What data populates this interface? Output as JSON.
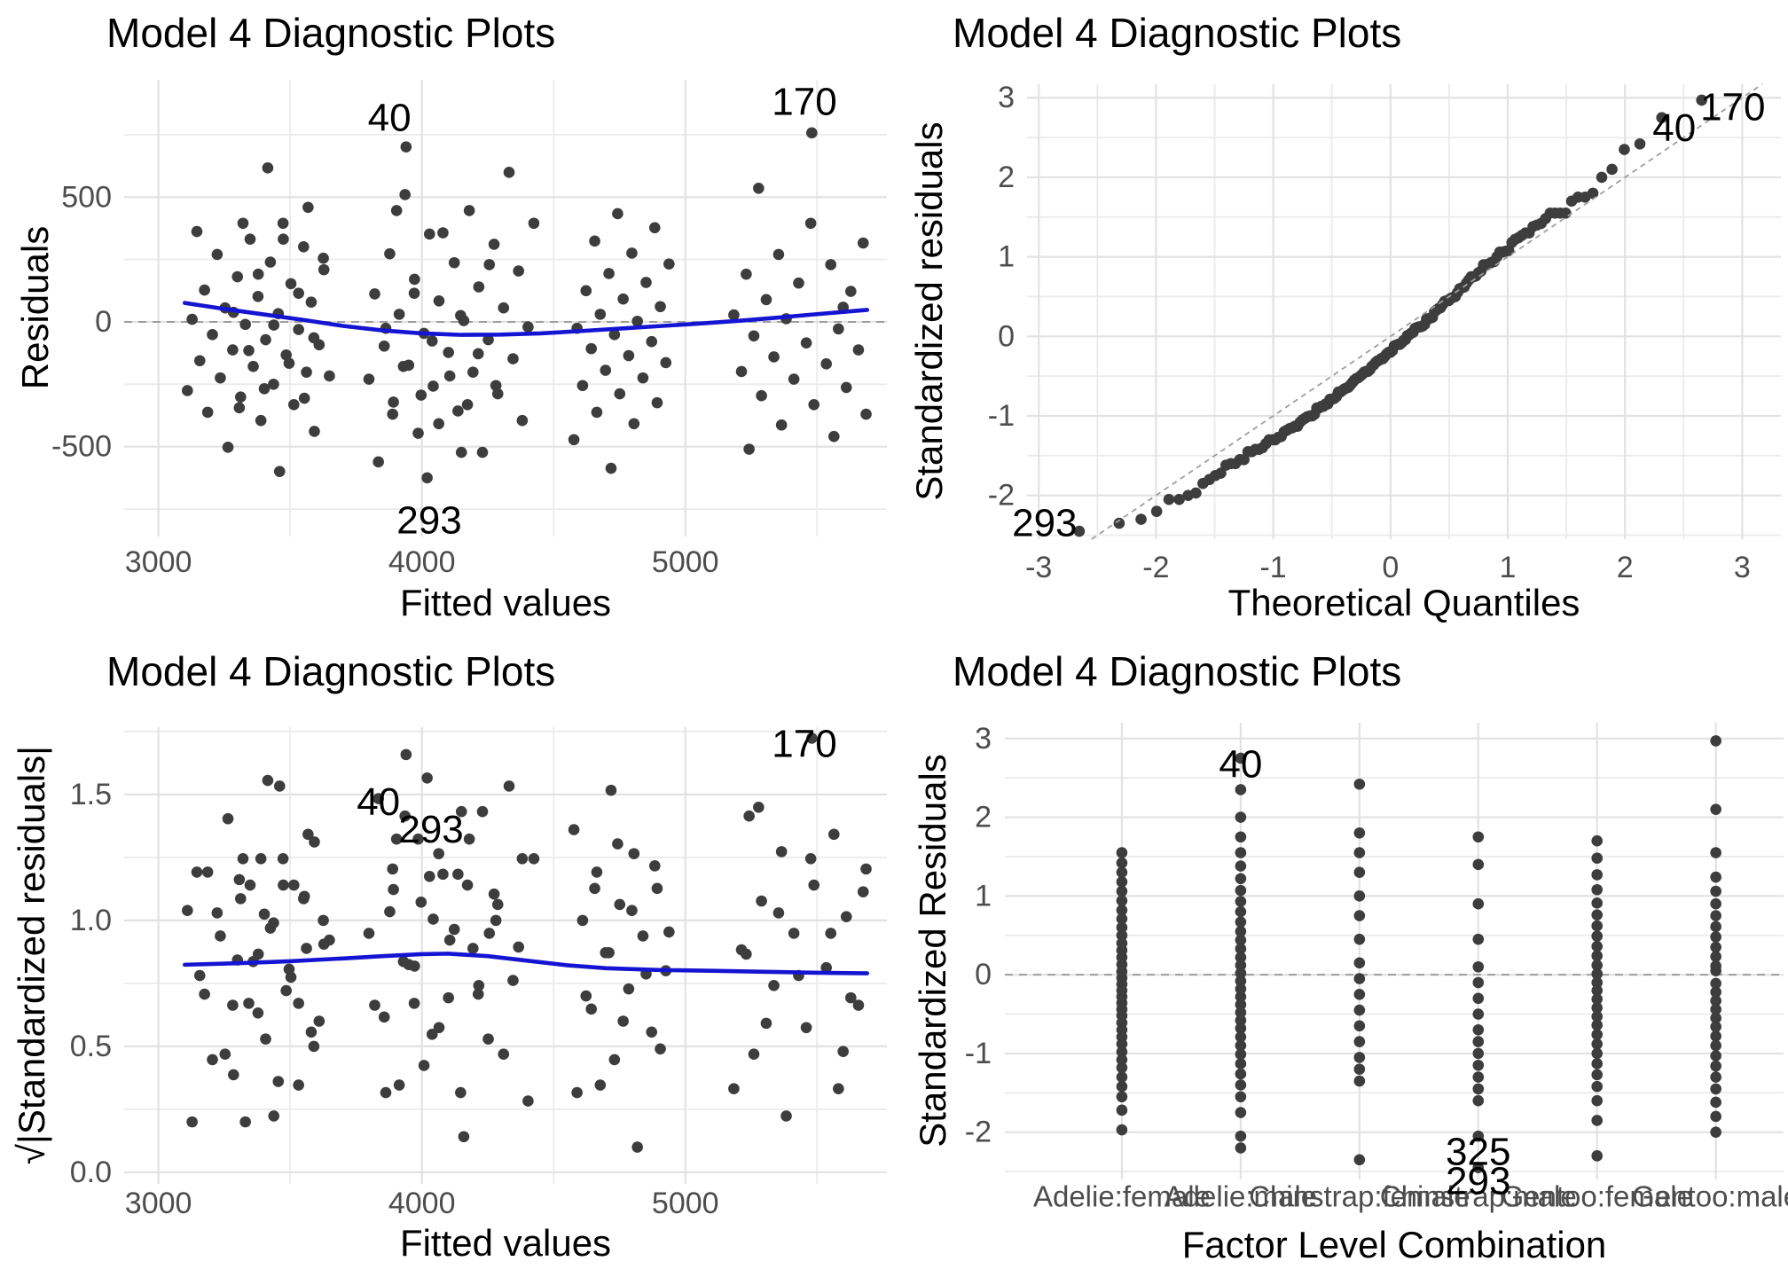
{
  "figure": {
    "background": "#ffffff",
    "colors": {
      "point": "#3d3d3d",
      "smooth_line": "#1414d2",
      "grid_major": "#e2e2e2",
      "grid_minor": "#ebebeb",
      "dashed_ref": "#9e9e9e",
      "tick_text": "#4d4d4d",
      "title_text": "#000000",
      "annotation_text": "#000000"
    }
  },
  "chart_data": {
    "shared": {
      "description": "Linear model diagnostic data; one observation list shared by all four panels",
      "residual_scale": 255,
      "labeled_observations": [
        {
          "id": "40",
          "group": "Adelie:male",
          "std_residual": 2.75
        },
        {
          "id": "170",
          "group": "Gentoo:male",
          "std_residual": 2.97
        },
        {
          "id": "293",
          "group": "Chinstrap:male",
          "std_residual": -2.45
        },
        {
          "id": "325",
          "group": "Chinstrap:male",
          "std_residual": -2.05
        }
      ],
      "groups": [
        {
          "label": "Adelie:female",
          "fitted": [
            3264,
            3592,
            3389,
            3187,
            3514,
            3312,
            3110,
            3437,
            3235,
            3562,
            3360,
            3157,
            3485,
            3282,
            3610,
            3407,
            3205,
            3532,
            3330,
            3128,
            3455,
            3253,
            3580,
            3378,
            3175,
            3503,
            3300,
            3628,
            3425,
            3223,
            3551,
            3348,
            3146,
            3473
          ],
          "std": [
            -1.97,
            -1.72,
            -1.55,
            -1.42,
            -1.3,
            -1.18,
            -1.08,
            -0.98,
            -0.88,
            -0.79,
            -0.7,
            -0.61,
            -0.52,
            -0.44,
            -0.36,
            -0.28,
            -0.2,
            -0.12,
            -0.04,
            0.04,
            0.13,
            0.22,
            0.31,
            0.4,
            0.5,
            0.6,
            0.71,
            0.82,
            0.94,
            1.06,
            1.18,
            1.3,
            1.42,
            1.55
          ]
        },
        {
          "label": "Adelie:male",
          "fitted": [
            3835,
            4230,
            3986,
            4381,
            4137,
            3892,
            4288,
            4043,
            3799,
            4194,
            3950,
            4346,
            4101,
            3857,
            4252,
            4008,
            4403,
            4159,
            3914,
            4310,
            4065,
            3821,
            4216,
            3972,
            4367,
            4123,
            3878,
            4274,
            4029,
            4425,
            4180,
            3936,
            4331,
            3940
          ],
          "std": [
            -2.2,
            -2.05,
            -1.75,
            -1.55,
            -1.4,
            -1.26,
            -1.13,
            -1.01,
            -0.9,
            -0.79,
            -0.68,
            -0.58,
            -0.48,
            -0.38,
            -0.28,
            -0.18,
            -0.08,
            0.02,
            0.12,
            0.22,
            0.33,
            0.44,
            0.55,
            0.67,
            0.8,
            0.93,
            1.07,
            1.22,
            1.38,
            1.55,
            1.75,
            2.0,
            2.35,
            2.75
          ]
        },
        {
          "label": "Chinstrap:female",
          "fitted": [
            3460,
            3307,
            3554,
            3402,
            3649,
            3496,
            3343,
            3590,
            3438,
            3285,
            3532,
            3379,
            3626,
            3474,
            3321,
            3568,
            3415
          ],
          "std": [
            -2.35,
            -1.35,
            -1.2,
            -1.05,
            -0.85,
            -0.65,
            -0.45,
            -0.25,
            -0.05,
            0.15,
            0.45,
            0.75,
            1.0,
            1.3,
            1.55,
            1.8,
            2.42
          ]
        },
        {
          "label": "Chinstrap:male",
          "fitted": [
            4020,
            4150,
            4064,
            3889,
            4173,
            3997,
            4281,
            4106,
            3930,
            4214,
            4039,
            3863,
            4147,
            3971,
            4256,
            4080,
            3904
          ],
          "std": [
            -2.45,
            -2.05,
            -1.6,
            -1.45,
            -1.3,
            -1.15,
            -1.0,
            -0.85,
            -0.7,
            -0.5,
            -0.3,
            -0.1,
            0.1,
            0.45,
            0.9,
            1.4,
            1.75
          ]
        },
        {
          "label": "Gentoo:female",
          "fitted": [
            4718,
            4577,
            4805,
            4664,
            4893,
            4751,
            4610,
            4839,
            4697,
            4926,
            4785,
            4643,
            4872,
            4731,
            4589,
            4818,
            4677,
            4905,
            4764,
            4623,
            4851,
            4710,
            4938,
            4797,
            4656,
            4884,
            4743
          ],
          "std": [
            -2.3,
            -1.85,
            -1.6,
            -1.42,
            -1.27,
            -1.13,
            -1.0,
            -0.88,
            -0.76,
            -0.64,
            -0.53,
            -0.42,
            -0.31,
            -0.2,
            -0.1,
            0.01,
            0.12,
            0.24,
            0.36,
            0.49,
            0.62,
            0.76,
            0.91,
            1.08,
            1.27,
            1.48,
            1.7
          ]
        },
        {
          "label": "Gentoo:male",
          "fitted": [
            5242,
            5564,
            5365,
            5686,
            5488,
            5289,
            5611,
            5412,
            5213,
            5535,
            5336,
            5657,
            5459,
            5260,
            5581,
            5383,
            5184,
            5599,
            5307,
            5628,
            5430,
            5231,
            5552,
            5354,
            5675,
            5476,
            5278,
            5480
          ],
          "std": [
            -2.0,
            -1.8,
            -1.62,
            -1.45,
            -1.3,
            -1.16,
            -1.03,
            -0.9,
            -0.78,
            -0.66,
            -0.55,
            -0.44,
            -0.33,
            -0.22,
            -0.11,
            0.05,
            0.11,
            0.23,
            0.35,
            0.48,
            0.61,
            0.75,
            0.9,
            1.06,
            1.24,
            1.55,
            2.1,
            2.97
          ]
        }
      ]
    },
    "charts": [
      {
        "id": "resid_vs_fitted",
        "type": "scatter",
        "derive": "resid_fitted",
        "title": "Model 4 Diagnostic Plots",
        "xlabel": "Fitted values",
        "ylabel": "Residuals",
        "xlim": [
          2870,
          5765
        ],
        "ylim": [
          -860,
          970
        ],
        "xticks": [
          3000,
          4000,
          5000
        ],
        "xticks_minor": [
          3500,
          4500,
          5500
        ],
        "yticks": [
          -500,
          0,
          500
        ],
        "ytick_labels": [
          "-500",
          "0",
          "500"
        ],
        "yticks_minor": [
          -750,
          -250,
          250,
          750
        ],
        "hline_dashed": 0,
        "smooth": [
          [
            3100,
            76
          ],
          [
            3250,
            52
          ],
          [
            3400,
            30
          ],
          [
            3550,
            8
          ],
          [
            3700,
            -16
          ],
          [
            3850,
            -34
          ],
          [
            4000,
            -46
          ],
          [
            4150,
            -52
          ],
          [
            4300,
            -51
          ],
          [
            4450,
            -46
          ],
          [
            4600,
            -37
          ],
          [
            4750,
            -27
          ],
          [
            4900,
            -17
          ],
          [
            5050,
            -7
          ],
          [
            5200,
            4
          ],
          [
            5350,
            17
          ],
          [
            5500,
            31
          ],
          [
            5690,
            48
          ]
        ],
        "annotations": [
          {
            "text": "40",
            "x": 3877,
            "y": 817
          },
          {
            "text": "170",
            "x": 5452,
            "y": 881
          },
          {
            "text": "293",
            "x": 4028,
            "y": -796
          }
        ]
      },
      {
        "id": "qq_plot",
        "type": "scatter",
        "derive": "qq",
        "title": "Model 4 Diagnostic Plots",
        "xlabel": "Theoretical Quantiles",
        "ylabel": "Standardized residuals",
        "xlim": [
          -3.1,
          3.33
        ],
        "ylim": [
          -2.55,
          3.17
        ],
        "xticks": [
          -3,
          -2,
          -1,
          0,
          1,
          2,
          3
        ],
        "xticks_minor": [
          -2.5,
          -1.5,
          -0.5,
          0.5,
          1.5,
          2.5
        ],
        "yticks": [
          -2,
          -1,
          0,
          1,
          2,
          3
        ],
        "ytick_labels": [
          "-2",
          "-1",
          "0",
          "1",
          "2",
          "3"
        ],
        "yticks_minor": [
          -2.5,
          -1.5,
          -0.5,
          0.5,
          1.5,
          2.5
        ],
        "abline_dashed": true,
        "annotations": [
          {
            "text": "293",
            "x": -2.95,
            "y": -2.35
          },
          {
            "text": "40",
            "x": 2.42,
            "y": 2.62
          },
          {
            "text": "170",
            "x": 2.92,
            "y": 2.88
          }
        ]
      },
      {
        "id": "scale_location",
        "type": "scatter",
        "derive": "scale_location",
        "title": "Model 4 Diagnostic Plots",
        "xlabel": "Fitted values",
        "ylabel": "√|Standardized residuals|",
        "xlim": [
          2870,
          5765
        ],
        "ylim": [
          -0.046,
          1.767
        ],
        "xticks": [
          3000,
          4000,
          5000
        ],
        "xticks_minor": [
          3500,
          4500,
          5500
        ],
        "yticks": [
          0,
          0.5,
          1,
          1.5
        ],
        "ytick_labels": [
          "0.0",
          "0.5",
          "1.0",
          "1.5"
        ],
        "yticks_minor": [
          0.25,
          0.75,
          1.25,
          1.75
        ],
        "smooth": [
          [
            3100,
            0.824
          ],
          [
            3300,
            0.83
          ],
          [
            3500,
            0.838
          ],
          [
            3700,
            0.849
          ],
          [
            3850,
            0.858
          ],
          [
            4000,
            0.866
          ],
          [
            4100,
            0.868
          ],
          [
            4250,
            0.858
          ],
          [
            4400,
            0.84
          ],
          [
            4550,
            0.822
          ],
          [
            4700,
            0.81
          ],
          [
            4900,
            0.803
          ],
          [
            5100,
            0.8
          ],
          [
            5300,
            0.796
          ],
          [
            5500,
            0.792
          ],
          [
            5690,
            0.79
          ]
        ],
        "annotations": [
          {
            "text": "40",
            "x": 3835,
            "y": 1.47
          },
          {
            "text": "293",
            "x": 4035,
            "y": 1.36
          },
          {
            "text": "170",
            "x": 5452,
            "y": 1.7
          }
        ]
      },
      {
        "id": "resid_vs_factor",
        "type": "scatter",
        "derive": "factor_strips",
        "title": "Model 4 Diagnostic Plots",
        "xlabel": "Factor Level Combination",
        "ylabel": "Standardized Residuals",
        "categories": [
          "Adelie:female",
          "Adelie:male",
          "Chinstrap:female",
          "Chinstrap:male",
          "Gentoo:female",
          "Gentoo:male"
        ],
        "xlim": [
          0.015,
          6.57
        ],
        "ylim": [
          -2.6,
          3.2
        ],
        "xticks": [
          1,
          2,
          3,
          4,
          5,
          6
        ],
        "xticks_minor": [],
        "yticks": [
          -2,
          -1,
          0,
          1,
          2,
          3
        ],
        "ytick_labels": [
          "-2",
          "-1",
          "0",
          "1",
          "2",
          "3"
        ],
        "yticks_minor": [
          -2.5,
          -1.5,
          -0.5,
          0.5,
          1.5,
          2.5
        ],
        "hline_dashed": 0,
        "annotations": [
          {
            "text": "40",
            "x": 2,
            "y": 2.67
          },
          {
            "text": "325",
            "x": 4,
            "y": -2.25
          },
          {
            "text": "293",
            "x": 4,
            "y": -2.62
          }
        ]
      }
    ]
  }
}
